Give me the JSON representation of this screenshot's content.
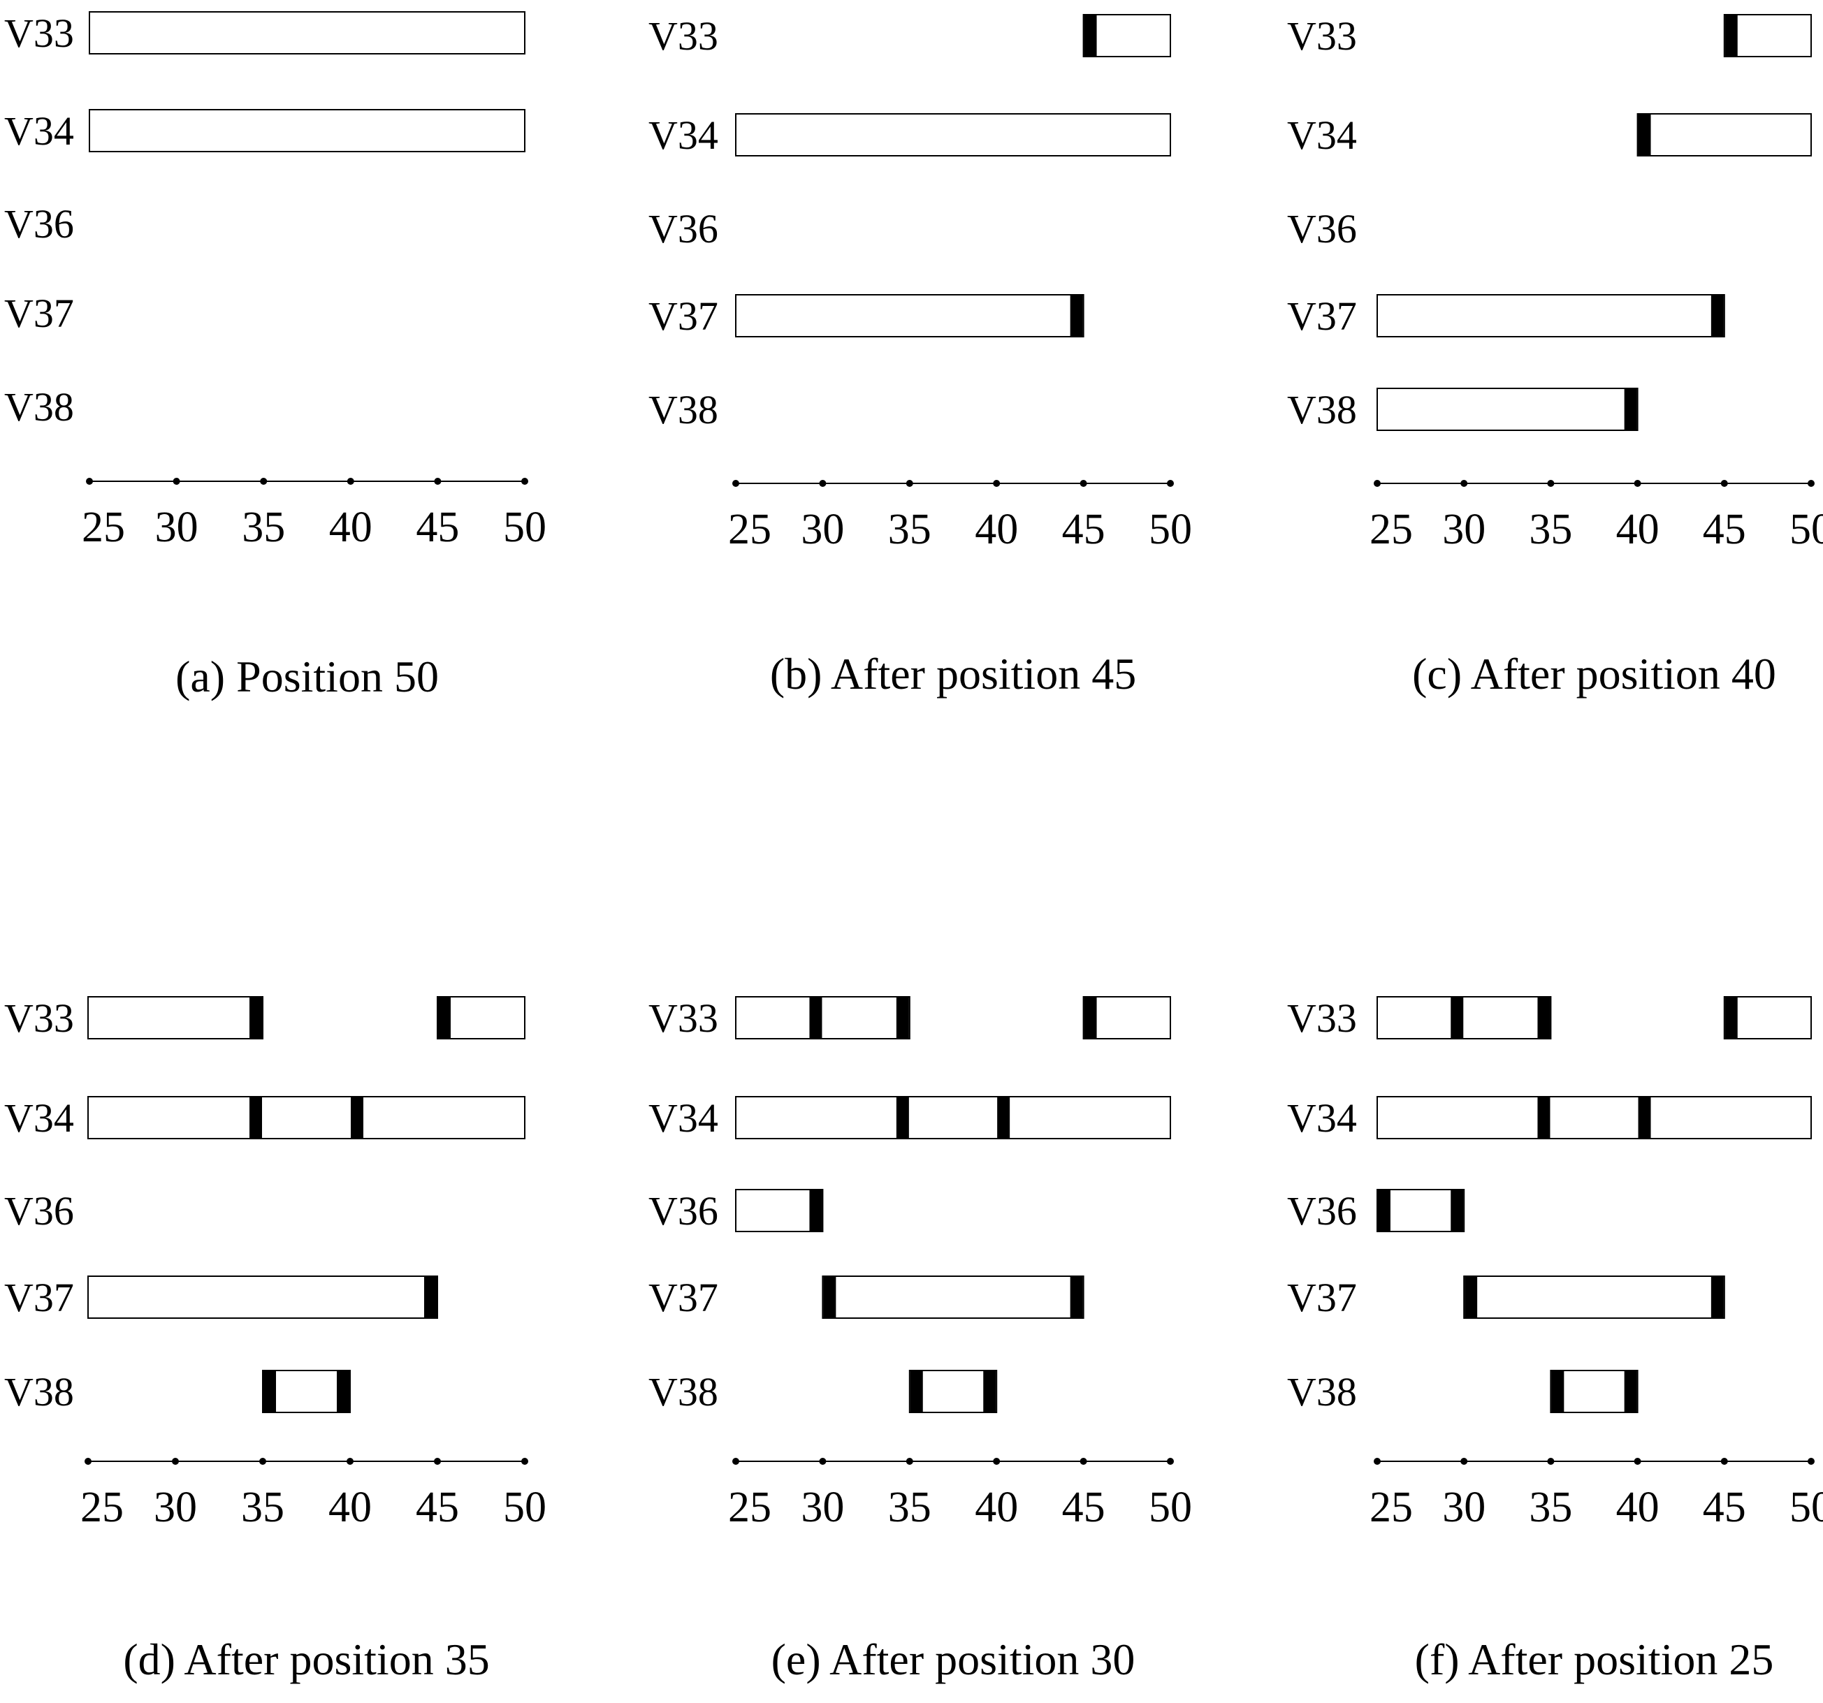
{
  "variables": [
    "V33",
    "V34",
    "V36",
    "V37",
    "V38"
  ],
  "axis_ticks": [
    "25",
    "30",
    "35",
    "40",
    "45",
    "50"
  ],
  "axis_range": [
    25,
    50
  ],
  "panels": [
    {
      "caption": "(a) Position 50",
      "rows": {
        "V33": [
          {
            "start": 25,
            "end": 50,
            "marks": []
          }
        ],
        "V34": [
          {
            "start": 25,
            "end": 50,
            "marks": []
          }
        ],
        "V36": [],
        "V37": [],
        "V38": []
      }
    },
    {
      "caption": "(b) After position 45",
      "rows": {
        "V33": [
          {
            "start": 45,
            "end": 50,
            "marks": [
              45.4
            ]
          }
        ],
        "V34": [
          {
            "start": 25,
            "end": 50,
            "marks": []
          }
        ],
        "V36": [],
        "V37": [
          {
            "start": 25,
            "end": 45,
            "marks": [
              44.6
            ]
          }
        ],
        "V38": []
      }
    },
    {
      "caption": "(c) After position 40",
      "rows": {
        "V33": [
          {
            "start": 45,
            "end": 50,
            "marks": [
              45.4
            ]
          }
        ],
        "V34": [
          {
            "start": 40,
            "end": 50,
            "marks": [
              40.4
            ]
          }
        ],
        "V36": [],
        "V37": [
          {
            "start": 25,
            "end": 45,
            "marks": [
              44.6
            ]
          }
        ],
        "V38": [
          {
            "start": 25,
            "end": 40,
            "marks": [
              39.6
            ]
          }
        ]
      }
    },
    {
      "caption": "(d) After position 35",
      "rows": {
        "V33": [
          {
            "start": 25,
            "end": 35,
            "marks": [
              34.6
            ]
          },
          {
            "start": 45,
            "end": 50,
            "marks": [
              45.4
            ]
          }
        ],
        "V34": [
          {
            "start": 25,
            "end": 50,
            "marks": [
              34.6,
              40.4
            ]
          }
        ],
        "V36": [],
        "V37": [
          {
            "start": 25,
            "end": 45,
            "marks": [
              44.6
            ]
          }
        ],
        "V38": [
          {
            "start": 35,
            "end": 40,
            "marks": [
              35.4,
              39.6
            ]
          }
        ]
      }
    },
    {
      "caption": "(e) After position 30",
      "rows": {
        "V33": [
          {
            "start": 25,
            "end": 35,
            "marks": [
              29.6,
              34.6
            ]
          },
          {
            "start": 45,
            "end": 50,
            "marks": [
              45.4
            ]
          }
        ],
        "V34": [
          {
            "start": 25,
            "end": 50,
            "marks": [
              34.6,
              40.4
            ]
          }
        ],
        "V36": [
          {
            "start": 25,
            "end": 30,
            "marks": [
              29.6
            ]
          }
        ],
        "V37": [
          {
            "start": 30,
            "end": 45,
            "marks": [
              30.4,
              44.6
            ]
          }
        ],
        "V38": [
          {
            "start": 35,
            "end": 40,
            "marks": [
              35.4,
              39.6
            ]
          }
        ]
      }
    },
    {
      "caption": "(f) After position 25",
      "rows": {
        "V33": [
          {
            "start": 25,
            "end": 35,
            "marks": [
              29.6,
              34.6
            ]
          },
          {
            "start": 45,
            "end": 50,
            "marks": [
              45.4
            ]
          }
        ],
        "V34": [
          {
            "start": 25,
            "end": 50,
            "marks": [
              34.6,
              40.4
            ]
          }
        ],
        "V36": [
          {
            "start": 25,
            "end": 30,
            "marks": [
              25.4,
              29.6
            ]
          }
        ],
        "V37": [
          {
            "start": 30,
            "end": 45,
            "marks": [
              30.4,
              44.6
            ]
          }
        ],
        "V38": [
          {
            "start": 35,
            "end": 40,
            "marks": [
              35.4,
              39.6
            ]
          }
        ]
      }
    }
  ]
}
